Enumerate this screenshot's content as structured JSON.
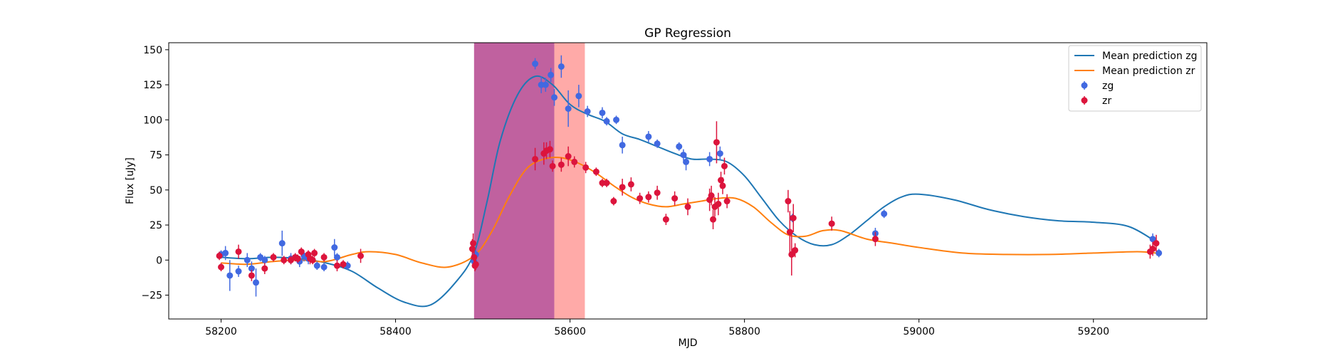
{
  "chart_data": {
    "type": "line",
    "title": "GP Regression",
    "xlabel": "MJD",
    "ylabel": "Flux [uJy]",
    "xlim": [
      58140,
      59330
    ],
    "ylim": [
      -42,
      155
    ],
    "xticks": [
      58200,
      58400,
      58600,
      58800,
      59000,
      59200
    ],
    "yticks": [
      -25,
      0,
      25,
      50,
      75,
      100,
      125,
      150
    ],
    "legend_placement": "top-right",
    "shaded_regions": [
      {
        "x0": 58490,
        "x1": 58582,
        "color": "#c0619f"
      },
      {
        "x0": 58582,
        "x1": 58617,
        "color": "#ffaaa8"
      }
    ],
    "lines": [
      {
        "name": "Mean prediction zg",
        "color": "#1f77b4",
        "x": [
          58200,
          58230,
          58260,
          58290,
          58320,
          58350,
          58380,
          58410,
          58440,
          58470,
          58490,
          58505,
          58520,
          58540,
          58560,
          58580,
          58600,
          58620,
          58640,
          58660,
          58680,
          58700,
          58720,
          58740,
          58760,
          58780,
          58800,
          58820,
          58840,
          58860,
          58880,
          58900,
          58920,
          58940,
          58960,
          58980,
          59000,
          59040,
          59080,
          59120,
          59160,
          59200,
          59240,
          59272
        ],
        "y": [
          2,
          1,
          2,
          1,
          -2,
          -8,
          -20,
          -30,
          -32,
          -15,
          5,
          42,
          85,
          118,
          131,
          125,
          111,
          104,
          99,
          90,
          86,
          81,
          76,
          72,
          72,
          70,
          60,
          44,
          28,
          17,
          11,
          11,
          18,
          28,
          38,
          45,
          47,
          43,
          36,
          31,
          28,
          27,
          24,
          13
        ]
      },
      {
        "name": "Mean prediction zr",
        "color": "#ff7f0e",
        "x": [
          58200,
          58230,
          58260,
          58290,
          58320,
          58350,
          58370,
          58400,
          58430,
          58460,
          58490,
          58510,
          58530,
          58550,
          58570,
          58590,
          58610,
          58630,
          58650,
          58670,
          58690,
          58710,
          58730,
          58750,
          58770,
          58790,
          58810,
          58830,
          58850,
          58870,
          58890,
          58910,
          58940,
          58970,
          59000,
          59050,
          59100,
          59150,
          59200,
          59250,
          59272
        ],
        "y": [
          -2,
          -3,
          -1,
          0,
          -1,
          4,
          6,
          4,
          -2,
          -5,
          3,
          20,
          45,
          65,
          72,
          73,
          69,
          62,
          53,
          45,
          40,
          38,
          40,
          42,
          44,
          44,
          38,
          27,
          18,
          17,
          21,
          21,
          15,
          12,
          9,
          5,
          4,
          4,
          5,
          6,
          5
        ]
      }
    ],
    "scatter": [
      {
        "name": "zg",
        "color": "#4169e1",
        "x": [
          58200,
          58205,
          58210,
          58220,
          58230,
          58235,
          58240,
          58245,
          58250,
          58270,
          58280,
          58290,
          58295,
          58300,
          58310,
          58318,
          58330,
          58333,
          58345,
          58490,
          58492,
          58560,
          58567,
          58572,
          58578,
          58582,
          58590,
          58598,
          58610,
          58620,
          58637,
          58642,
          58653,
          58660,
          58690,
          58700,
          58725,
          58730,
          58733,
          58760,
          58772,
          58855,
          58950,
          58960,
          59268,
          59275
        ],
        "y": [
          4,
          5,
          -11,
          -8,
          0,
          -6,
          -16,
          2,
          0,
          12,
          1,
          -1,
          3,
          1,
          -4,
          -5,
          9,
          2,
          -4,
          -1,
          4,
          140,
          125,
          125,
          132,
          116,
          138,
          108,
          117,
          106,
          105,
          99,
          100,
          82,
          88,
          83,
          81,
          75,
          70,
          72,
          76,
          30,
          19,
          33,
          15,
          5
        ],
        "err": [
          3,
          5,
          11,
          4,
          5,
          5,
          10,
          3,
          3,
          9,
          4,
          4,
          4,
          4,
          3,
          3,
          6,
          3,
          3,
          3,
          3,
          4,
          6,
          5,
          5,
          6,
          8,
          13,
          8,
          4,
          4,
          3,
          3,
          6,
          4,
          3,
          3,
          4,
          6,
          5,
          5,
          3,
          4,
          3,
          4,
          3
        ]
      },
      {
        "name": "zr",
        "color": "#dc143c",
        "x": [
          58198,
          58200,
          58220,
          58235,
          58250,
          58260,
          58272,
          58280,
          58285,
          58288,
          58292,
          58300,
          58302,
          58305,
          58307,
          58318,
          58333,
          58340,
          58360,
          58488,
          58489,
          58490,
          58491,
          58492,
          58560,
          58570,
          58573,
          58577,
          58580,
          58590,
          58598,
          58605,
          58618,
          58630,
          58637,
          58642,
          58650,
          58660,
          58670,
          58680,
          58690,
          58700,
          58710,
          58720,
          58735,
          58760,
          58762,
          58764,
          58766,
          58768,
          58770,
          58773,
          58775,
          58777,
          58780,
          58850,
          58852,
          58854,
          58856,
          58858,
          58900,
          58950,
          59265,
          59268,
          59272
        ],
        "y": [
          3,
          -5,
          6,
          -11,
          -6,
          2,
          0,
          0,
          2,
          1,
          6,
          4,
          1,
          0,
          5,
          2,
          -4,
          -3,
          3,
          8,
          12,
          2,
          -4,
          -3,
          72,
          76,
          78,
          79,
          67,
          68,
          74,
          70,
          66,
          63,
          55,
          55,
          42,
          52,
          54,
          44,
          45,
          48,
          29,
          44,
          38,
          43,
          46,
          29,
          38,
          84,
          40,
          57,
          53,
          67,
          42,
          42,
          20,
          4,
          30,
          7,
          26,
          15,
          6,
          8,
          12
        ],
        "err": [
          3,
          3,
          5,
          4,
          4,
          3,
          3,
          3,
          3,
          3,
          3,
          3,
          4,
          3,
          3,
          3,
          4,
          3,
          5,
          7,
          7,
          5,
          4,
          4,
          8,
          8,
          6,
          6,
          4,
          5,
          7,
          4,
          4,
          3,
          3,
          3,
          3,
          6,
          5,
          4,
          4,
          5,
          4,
          5,
          6,
          8,
          7,
          7,
          7,
          15,
          8,
          6,
          6,
          6,
          5,
          8,
          15,
          15,
          10,
          5,
          5,
          5,
          5,
          5,
          6
        ]
      }
    ]
  }
}
